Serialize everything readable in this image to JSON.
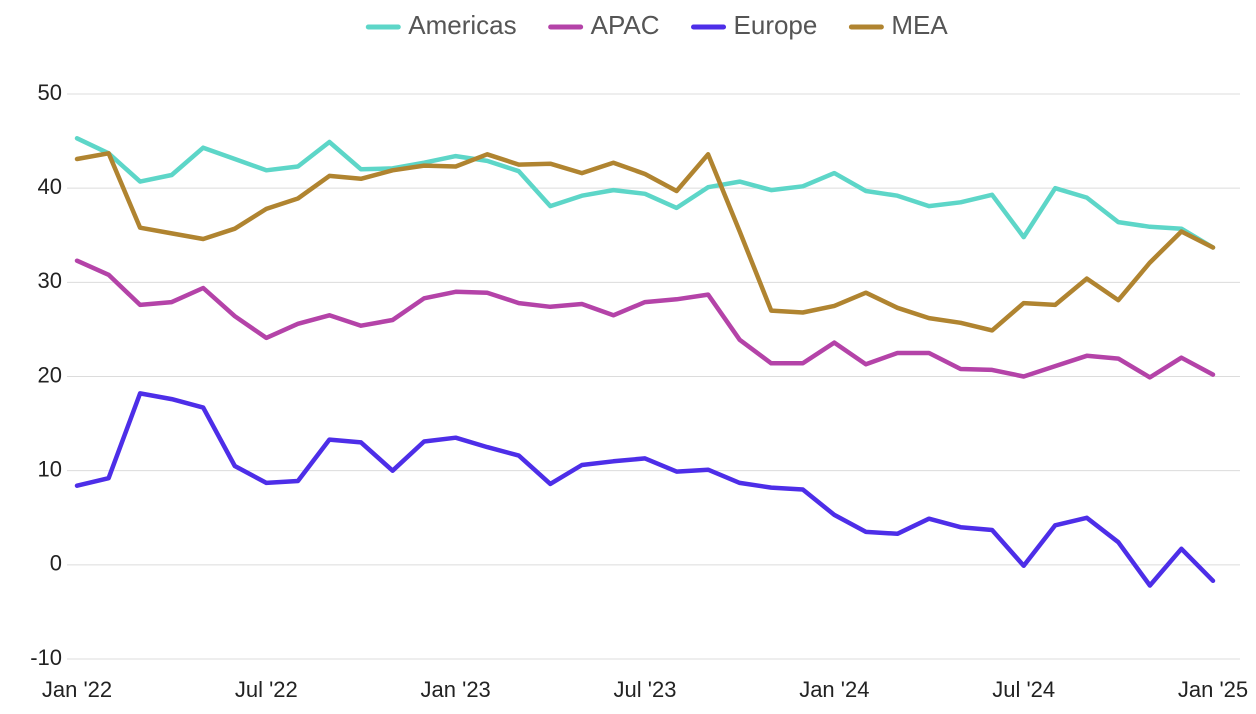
{
  "chart_data": {
    "type": "line",
    "categories": [
      "Jan '22",
      null,
      null,
      null,
      null,
      null,
      "Jul '22",
      null,
      null,
      null,
      null,
      null,
      "Jan '23",
      null,
      null,
      null,
      null,
      null,
      "Jul '23",
      null,
      null,
      null,
      null,
      null,
      "Jan '24",
      null,
      null,
      null,
      null,
      null,
      "Jul '24",
      null,
      null,
      null,
      null,
      null,
      "Jan '25"
    ],
    "series": [
      {
        "name": "Americas",
        "color": "#5dd6c8",
        "values": [
          45.3,
          43.7,
          40.7,
          41.4,
          44.3,
          43.1,
          41.9,
          42.3,
          44.9,
          42.0,
          42.1,
          42.7,
          43.4,
          42.9,
          41.8,
          38.1,
          39.2,
          39.8,
          39.4,
          37.9,
          40.1,
          40.7,
          39.8,
          40.2,
          41.6,
          39.7,
          39.2,
          38.1,
          38.5,
          39.3,
          34.8,
          40.0,
          39.0,
          36.4,
          35.9,
          35.7,
          33.7
        ]
      },
      {
        "name": "APAC",
        "color": "#b443a8",
        "values": [
          32.3,
          30.8,
          27.6,
          27.9,
          29.4,
          26.4,
          24.1,
          25.6,
          26.5,
          25.4,
          26.0,
          28.3,
          29.0,
          28.9,
          27.8,
          27.4,
          27.7,
          26.5,
          27.9,
          28.2,
          28.7,
          23.9,
          21.4,
          21.4,
          23.6,
          21.3,
          22.5,
          22.5,
          20.8,
          20.7,
          20.0,
          21.1,
          22.2,
          21.9,
          19.9,
          22.0,
          20.2
        ]
      },
      {
        "name": "Europe",
        "color": "#4d2ee8",
        "values": [
          8.4,
          9.2,
          18.2,
          17.6,
          16.7,
          10.5,
          8.7,
          8.9,
          13.3,
          13.0,
          10.0,
          13.1,
          13.5,
          12.5,
          11.6,
          8.6,
          10.6,
          11.0,
          11.3,
          9.9,
          10.1,
          8.7,
          8.2,
          8.0,
          5.3,
          3.5,
          3.3,
          4.9,
          4.0,
          3.7,
          -0.1,
          4.2,
          5.0,
          2.4,
          -2.2,
          1.7,
          -1.7
        ]
      },
      {
        "name": "MEA",
        "color": "#b08430",
        "values": [
          43.1,
          43.7,
          35.8,
          35.2,
          34.6,
          35.7,
          37.8,
          38.9,
          41.3,
          41.0,
          41.9,
          42.4,
          42.3,
          43.6,
          42.5,
          42.6,
          41.6,
          42.7,
          41.5,
          39.7,
          43.6,
          35.4,
          27.0,
          26.8,
          27.5,
          28.9,
          27.3,
          26.2,
          25.7,
          24.9,
          27.8,
          27.6,
          30.4,
          28.1,
          32.1,
          35.4,
          33.7
        ]
      }
    ],
    "ylim": [
      -10,
      50
    ],
    "yticks": [
      -10,
      0,
      10,
      20,
      30,
      40,
      50
    ],
    "grid": true,
    "legend": "top"
  }
}
